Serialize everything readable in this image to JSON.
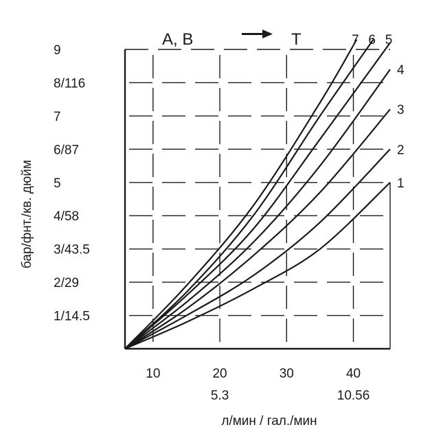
{
  "chart_data": {
    "type": "line",
    "ylabel": "бар/фнт./кв. дюйм",
    "xlabel": "л/мин / гал./мин",
    "flow_direction": {
      "from": "A, B",
      "to": "T",
      "arrow_icon": "right-arrow-icon"
    },
    "x_range": [
      5.8,
      45.5
    ],
    "y_range": [
      0,
      9
    ],
    "x_ticks": [
      {
        "value": 10,
        "label": "10"
      },
      {
        "value": 20,
        "label": "20"
      },
      {
        "value": 30,
        "label": "30"
      },
      {
        "value": 40,
        "label": "40"
      }
    ],
    "x_secondary_ticks": [
      {
        "value": 20,
        "label": "5.3"
      },
      {
        "value": 40,
        "label": "10.56"
      }
    ],
    "y_ticks": [
      {
        "value": 1,
        "label": "1/14.5"
      },
      {
        "value": 2,
        "label": "2/29"
      },
      {
        "value": 3,
        "label": "3/43.5"
      },
      {
        "value": 4,
        "label": "4/58"
      },
      {
        "value": 5,
        "label": "5"
      },
      {
        "value": 6,
        "label": "6/87"
      },
      {
        "value": 7,
        "label": "7"
      },
      {
        "value": 8,
        "label": "8/116"
      },
      {
        "value": 9,
        "label": "9"
      }
    ],
    "grid": true,
    "line_color": "#1a1a1a",
    "series": [
      {
        "label": "1",
        "x": [
          5.8,
          15,
          25,
          35,
          45.5
        ],
        "y": [
          0,
          0.8,
          1.8,
          3.0,
          5.0
        ]
      },
      {
        "label": "2",
        "x": [
          5.8,
          15,
          25,
          35,
          45.5
        ],
        "y": [
          0,
          1.0,
          2.2,
          3.8,
          6.0
        ]
      },
      {
        "label": "3",
        "x": [
          5.8,
          15,
          25,
          35,
          45.5
        ],
        "y": [
          0,
          1.2,
          2.8,
          4.7,
          7.2
        ]
      },
      {
        "label": "4",
        "x": [
          5.8,
          15,
          25,
          35,
          45.5
        ],
        "y": [
          0,
          1.4,
          3.2,
          5.5,
          8.4
        ]
      },
      {
        "label": "5",
        "x": [
          5.8,
          15,
          25,
          35,
          45.5
        ],
        "y": [
          0,
          1.6,
          3.6,
          6.3,
          9.2
        ]
      },
      {
        "label": "6",
        "x": [
          5.8,
          15,
          25,
          35,
          43
        ],
        "y": [
          0,
          1.7,
          4.0,
          7.0,
          9.3
        ]
      },
      {
        "label": "7",
        "x": [
          5.8,
          15,
          25,
          35,
          40.5
        ],
        "y": [
          0,
          1.9,
          4.3,
          7.4,
          9.3
        ]
      }
    ]
  }
}
